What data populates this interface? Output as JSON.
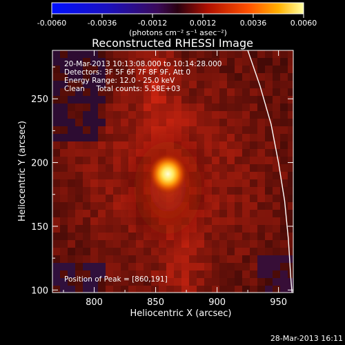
{
  "chart_data": {
    "type": "heatmap",
    "title": "Reconstructed RHESSI Image",
    "xlabel": "Heliocentric X (arcsec)",
    "ylabel": "Heliocentric Y (arcsec)",
    "xlim": [
      766,
      962
    ],
    "ylim": [
      98,
      288
    ],
    "x_ticks": [
      "800",
      "850",
      "900",
      "950"
    ],
    "y_ticks": [
      "100",
      "150",
      "200",
      "250"
    ],
    "colorbar": {
      "range": [
        -0.006,
        0.006
      ],
      "tick_labels": [
        "-0.0060",
        "-0.0036",
        "-0.0012",
        "0.0012",
        "0.0036",
        "0.0060"
      ],
      "units_label": "(photons cm⁻² s⁻¹ asec⁻²)"
    },
    "source_peak": {
      "x": 860,
      "y": 191
    },
    "limb_arc_points": [
      [
        925,
        288
      ],
      [
        935,
        260
      ],
      [
        944,
        230
      ],
      [
        950,
        200
      ],
      [
        955,
        170
      ],
      [
        958,
        140
      ],
      [
        960,
        110
      ],
      [
        961,
        98
      ]
    ],
    "info_lines": [
      "20-Mar-2013 10:13:08.000 to 10:14:28.000",
      "Detectors: 3F 5F 6F 7F 8F 9F, Att 0",
      "Energy Range: 12.0 - 25.0 keV",
      "Clean     Total counts: 5.58E+03"
    ],
    "peak_text": "Position of Peak = [860,191]",
    "date_stamp": "28-Mar-2013 16:11",
    "grid": false
  }
}
